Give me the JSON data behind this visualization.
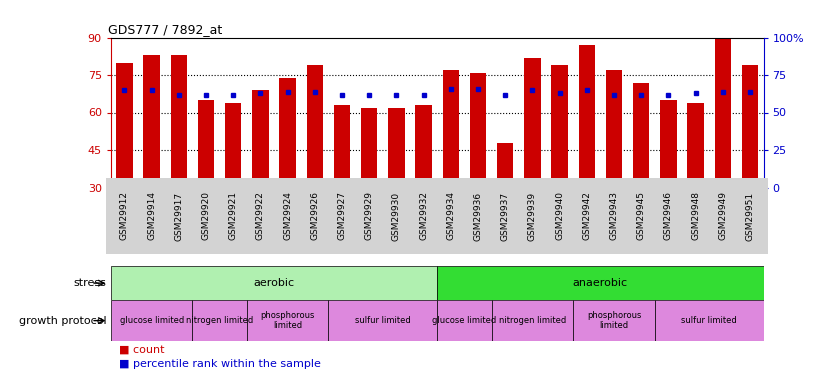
{
  "title": "GDS777 / 7892_at",
  "samples": [
    "GSM29912",
    "GSM29914",
    "GSM29917",
    "GSM29920",
    "GSM29921",
    "GSM29922",
    "GSM29924",
    "GSM29926",
    "GSM29927",
    "GSM29929",
    "GSM29930",
    "GSM29932",
    "GSM29934",
    "GSM29936",
    "GSM29937",
    "GSM29939",
    "GSM29940",
    "GSM29942",
    "GSM29943",
    "GSM29945",
    "GSM29946",
    "GSM29948",
    "GSM29949",
    "GSM29951"
  ],
  "count_values": [
    80,
    83,
    83,
    65,
    64,
    69,
    74,
    79,
    63,
    62,
    62,
    63,
    77,
    76,
    48,
    82,
    79,
    87,
    77,
    72,
    65,
    64,
    94,
    79
  ],
  "percentile_values": [
    65,
    65,
    62,
    62,
    62,
    63,
    64,
    64,
    62,
    62,
    62,
    62,
    66,
    66,
    62,
    65,
    63,
    65,
    62,
    62,
    62,
    63,
    64,
    64
  ],
  "ylim_left": [
    30,
    90
  ],
  "ylim_right": [
    0,
    100
  ],
  "yticks_left": [
    30,
    45,
    60,
    75,
    90
  ],
  "ytick_right_labels": [
    "0",
    "25",
    "50",
    "75",
    "100%"
  ],
  "yticks_right": [
    0,
    25,
    50,
    75,
    100
  ],
  "bar_color": "#cc0000",
  "dot_color": "#0000cc",
  "bg_color": "#ffffff",
  "tick_bg": "#d3d3d3",
  "stress_row": [
    {
      "label": "aerobic",
      "start": 0,
      "end": 12,
      "color": "#b0f0b0"
    },
    {
      "label": "anaerobic",
      "start": 12,
      "end": 24,
      "color": "#33dd33"
    }
  ],
  "protocol_row": [
    {
      "label": "glucose limited",
      "start": 0,
      "end": 3,
      "color": "#dd88dd"
    },
    {
      "label": "nitrogen limited",
      "start": 3,
      "end": 5,
      "color": "#dd88dd"
    },
    {
      "label": "phosphorous\nlimited",
      "start": 5,
      "end": 8,
      "color": "#dd88dd"
    },
    {
      "label": "sulfur limited",
      "start": 8,
      "end": 12,
      "color": "#dd88dd"
    },
    {
      "label": "glucose limited",
      "start": 12,
      "end": 14,
      "color": "#dd88dd"
    },
    {
      "label": "nitrogen limited",
      "start": 14,
      "end": 17,
      "color": "#dd88dd"
    },
    {
      "label": "phosphorous\nlimited",
      "start": 17,
      "end": 20,
      "color": "#dd88dd"
    },
    {
      "label": "sulfur limited",
      "start": 20,
      "end": 24,
      "color": "#dd88dd"
    }
  ],
  "legend_count_color": "#cc0000",
  "legend_dot_color": "#0000cc",
  "left_axis_color": "#cc0000",
  "right_axis_color": "#0000cc"
}
